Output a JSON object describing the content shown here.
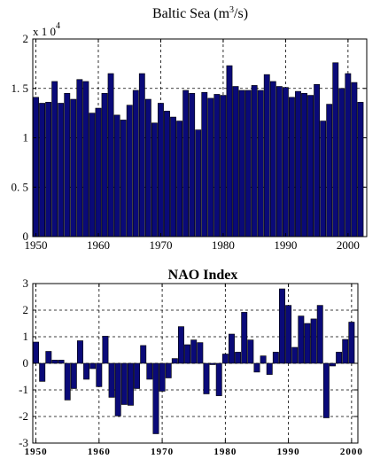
{
  "chart_data": [
    {
      "type": "bar",
      "title": "Baltic Sea (m3/s)",
      "title_parts": {
        "base": "Baltic Sea (m",
        "sup": "3",
        "end": "/s)"
      },
      "axis_multiplier": {
        "base": "x 1 0",
        "exponent": "4"
      },
      "x": [
        1950,
        1951,
        1952,
        1953,
        1954,
        1955,
        1956,
        1957,
        1958,
        1959,
        1960,
        1961,
        1962,
        1963,
        1964,
        1965,
        1966,
        1967,
        1968,
        1969,
        1970,
        1971,
        1972,
        1973,
        1974,
        1975,
        1976,
        1977,
        1978,
        1979,
        1980,
        1981,
        1982,
        1983,
        1984,
        1985,
        1986,
        1987,
        1988,
        1989,
        1990,
        1991,
        1992,
        1993,
        1994,
        1995,
        1996,
        1997,
        1998,
        1999,
        2000,
        2001,
        2002
      ],
      "values": [
        1.41,
        1.35,
        1.36,
        1.57,
        1.35,
        1.45,
        1.39,
        1.59,
        1.57,
        1.25,
        1.3,
        1.45,
        1.65,
        1.23,
        1.18,
        1.33,
        1.48,
        1.65,
        1.39,
        1.15,
        1.35,
        1.27,
        1.21,
        1.17,
        1.48,
        1.45,
        1.08,
        1.46,
        1.4,
        1.44,
        1.43,
        1.73,
        1.52,
        1.48,
        1.48,
        1.53,
        1.48,
        1.64,
        1.57,
        1.52,
        1.51,
        1.41,
        1.47,
        1.45,
        1.43,
        1.54,
        1.17,
        1.34,
        1.76,
        1.5,
        1.65,
        1.56,
        1.36
      ],
      "xlim": [
        1949.5,
        2003
      ],
      "ylim": [
        0,
        2
      ],
      "xticks": [
        1950,
        1960,
        1970,
        1980,
        1990,
        2000
      ],
      "yticks": [
        0,
        0.5,
        1,
        1.5,
        2
      ],
      "ytick_labels": [
        "0",
        "0. 5",
        "1",
        "1. 5",
        "2"
      ],
      "xtick_labels": [
        "1950",
        "1960",
        "1970",
        "1980",
        "1990",
        "2000"
      ],
      "grid": true,
      "bar_color": "#0a0a78"
    },
    {
      "type": "bar",
      "title": "NAO Index",
      "x": [
        1950,
        1951,
        1952,
        1953,
        1954,
        1955,
        1956,
        1957,
        1958,
        1959,
        1960,
        1961,
        1962,
        1963,
        1964,
        1965,
        1966,
        1967,
        1968,
        1969,
        1970,
        1971,
        1972,
        1973,
        1974,
        1975,
        1976,
        1977,
        1978,
        1979,
        1980,
        1981,
        1982,
        1983,
        1984,
        1985,
        1986,
        1987,
        1988,
        1989,
        1990,
        1991,
        1992,
        1993,
        1994,
        1995,
        1996,
        1997,
        1998,
        1999,
        2000
      ],
      "values": [
        0.8,
        -0.68,
        0.45,
        0.12,
        0.12,
        -1.38,
        -0.95,
        0.85,
        -0.6,
        -0.2,
        -0.88,
        1.02,
        -1.28,
        -1.98,
        -1.55,
        -1.58,
        -0.95,
        0.67,
        -0.6,
        -2.65,
        -1.05,
        -0.55,
        0.18,
        1.38,
        0.7,
        0.88,
        0.78,
        -1.15,
        -0.05,
        -1.22,
        0.35,
        1.1,
        0.42,
        1.92,
        0.88,
        -0.33,
        0.28,
        -0.42,
        0.42,
        2.8,
        2.18,
        0.6,
        1.78,
        1.5,
        1.67,
        2.18,
        -2.05,
        -0.1,
        0.42,
        0.9,
        1.55
      ],
      "xlim": [
        1949.5,
        2001
      ],
      "ylim": [
        -3,
        3
      ],
      "xticks": [
        1950,
        1960,
        1970,
        1980,
        1990,
        2000
      ],
      "yticks": [
        -3,
        -2,
        -1,
        0,
        1,
        2,
        3
      ],
      "ytick_labels": [
        "-3",
        "-2",
        "-1",
        "0",
        "1",
        "2",
        "3"
      ],
      "xtick_labels": [
        "1950",
        "1960",
        "1970",
        "1980",
        "1990",
        "2000"
      ],
      "grid": true,
      "bar_color": "#0a0a78"
    }
  ]
}
